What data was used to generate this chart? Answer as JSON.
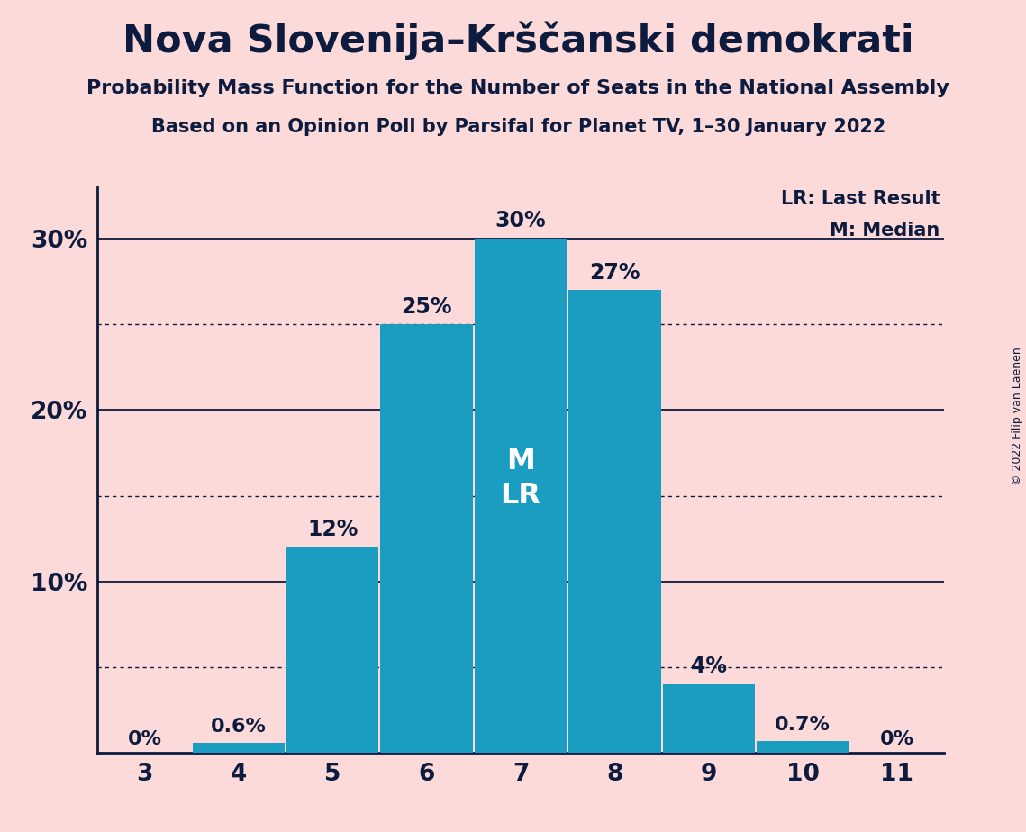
{
  "title": "Nova Slovenija–Krščanski demokrati",
  "subtitle1": "Probability Mass Function for the Number of Seats in the National Assembly",
  "subtitle2": "Based on an Opinion Poll by Parsifal for Planet TV, 1–30 January 2022",
  "copyright": "© 2022 Filip van Laenen",
  "seats": [
    3,
    4,
    5,
    6,
    7,
    8,
    9,
    10,
    11
  ],
  "probabilities": [
    0.0,
    0.6,
    12.0,
    25.0,
    30.0,
    27.0,
    4.0,
    0.7,
    0.0
  ],
  "bar_color": "#1B9DC2",
  "background_color": "#FBDAD9",
  "text_color": "#0D1B3E",
  "bar_labels": [
    "0%",
    "0.6%",
    "12%",
    "25%",
    "30%",
    "27%",
    "4%",
    "0.7%",
    "0%"
  ],
  "median_seat": 7,
  "last_result_seat": 7,
  "ylim_max": 33,
  "yticks": [
    10,
    20,
    30
  ],
  "ytick_labels": [
    "10%",
    "20%",
    "30%"
  ],
  "legend_lr": "LR: Last Result",
  "legend_m": "M: Median",
  "solid_line_y": [
    30,
    20,
    10
  ],
  "dotted_line_y": [
    25,
    15,
    5
  ]
}
